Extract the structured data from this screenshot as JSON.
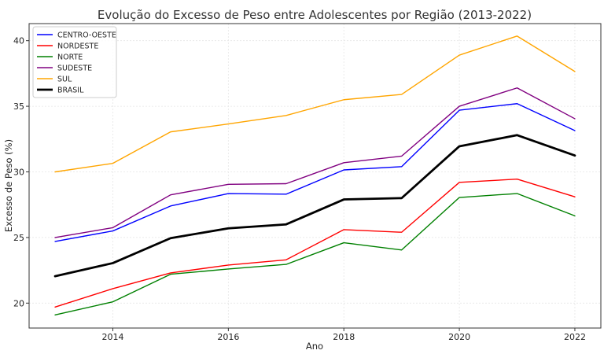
{
  "chart_data": {
    "type": "line",
    "title": "Evolução do Excesso de Peso entre Adolescentes por Região (2013-2022)",
    "xlabel": "Ano",
    "ylabel": "Excesso de Peso (%)",
    "x": [
      2013,
      2014,
      2015,
      2016,
      2017,
      2018,
      2019,
      2020,
      2021,
      2022
    ],
    "xlim": [
      2012.55,
      2022.45
    ],
    "ylim": [
      18.1,
      41.3
    ],
    "xticks": [
      2014,
      2016,
      2018,
      2020,
      2022
    ],
    "yticks": [
      20,
      25,
      30,
      35,
      40
    ],
    "grid": true,
    "legend_position": "top-left",
    "series": [
      {
        "name": "CENTRO-OESTE",
        "color": "#0000ff",
        "width": 1.4,
        "values": [
          24.7,
          25.5,
          27.4,
          28.35,
          28.3,
          30.15,
          30.4,
          34.7,
          35.2,
          33.15
        ]
      },
      {
        "name": "NORDESTE",
        "color": "#ff0000",
        "width": 1.4,
        "values": [
          19.7,
          21.1,
          22.3,
          22.9,
          23.3,
          25.6,
          25.4,
          29.2,
          29.45,
          28.1
        ]
      },
      {
        "name": "NORTE",
        "color": "#008000",
        "width": 1.4,
        "values": [
          19.1,
          20.1,
          22.2,
          22.6,
          22.95,
          24.6,
          24.05,
          28.05,
          28.35,
          26.65
        ]
      },
      {
        "name": "SUDESTE",
        "color": "#800080",
        "width": 1.4,
        "values": [
          25.0,
          25.75,
          28.25,
          29.05,
          29.1,
          30.7,
          31.2,
          35.0,
          36.4,
          34.05
        ]
      },
      {
        "name": "SUL",
        "color": "#ffa500",
        "width": 1.4,
        "values": [
          30.0,
          30.65,
          33.05,
          33.65,
          34.3,
          35.5,
          35.9,
          38.9,
          40.35,
          37.65
        ]
      },
      {
        "name": "BRASIL",
        "color": "#000000",
        "width": 2.8,
        "values": [
          22.05,
          23.05,
          24.95,
          25.7,
          26.0,
          27.9,
          28.0,
          31.95,
          32.8,
          31.25
        ]
      }
    ]
  }
}
